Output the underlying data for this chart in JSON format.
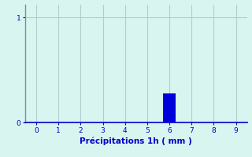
{
  "bar_x": [
    6
  ],
  "bar_height": [
    0.28
  ],
  "bar_color": "#0000dd",
  "bar_width": 0.6,
  "xlim": [
    -0.5,
    9.5
  ],
  "ylim": [
    0,
    1.12
  ],
  "xticks": [
    0,
    1,
    2,
    3,
    4,
    5,
    6,
    7,
    8,
    9
  ],
  "yticks": [
    0,
    1
  ],
  "xlabel": "Précipitations 1h ( mm )",
  "background_color": "#d8f5ef",
  "text_color": "#0000cc",
  "grid_color": "#b0d0cc",
  "tick_fontsize": 6.5,
  "label_fontsize": 7.5,
  "spine_color": "#888899"
}
